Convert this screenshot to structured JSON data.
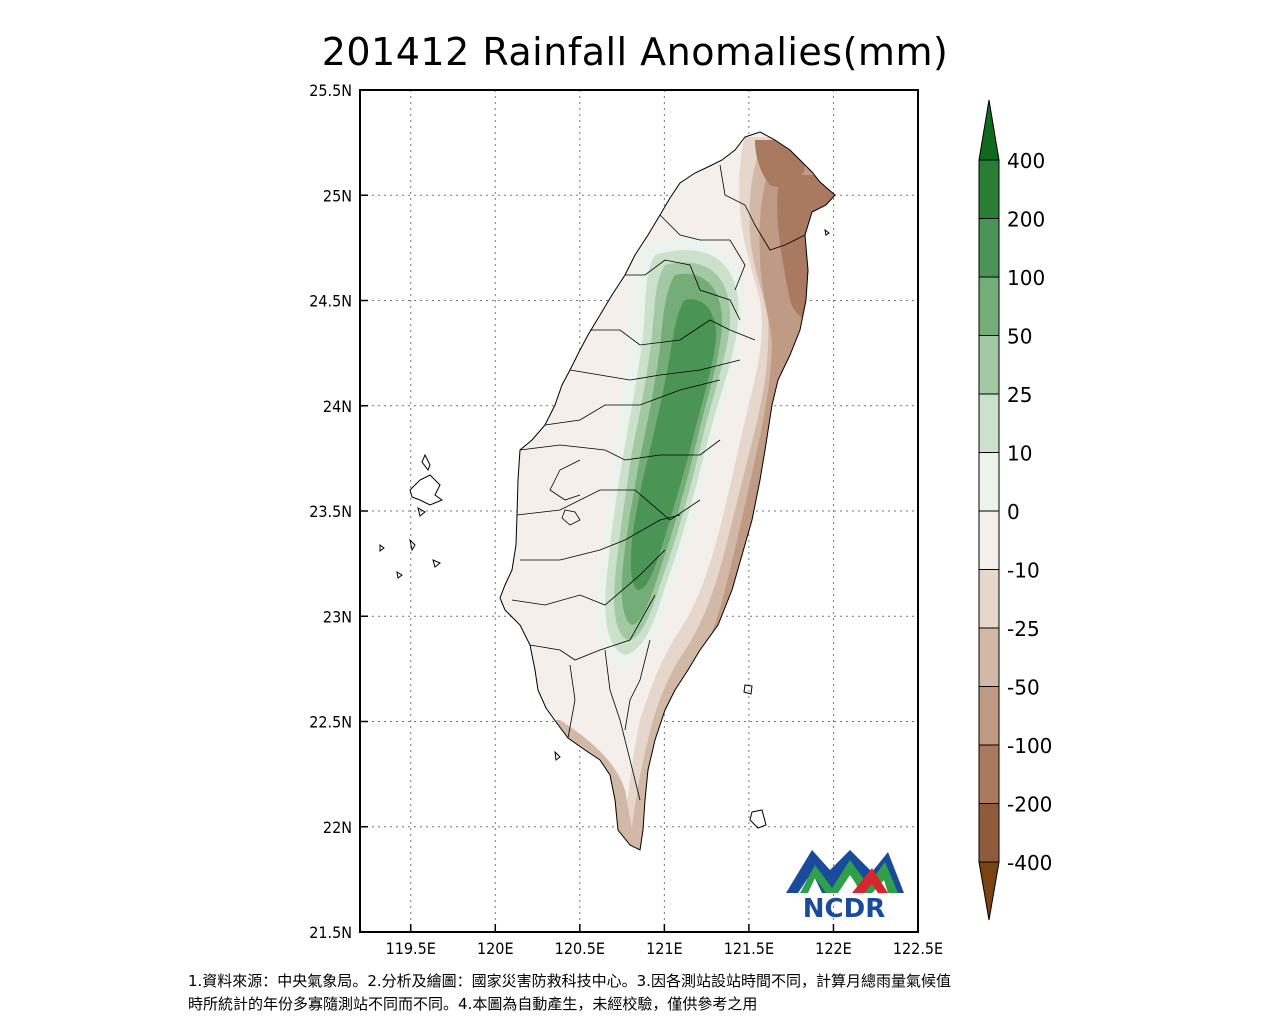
{
  "title": "201412 Rainfall Anomalies(mm)",
  "map": {
    "lat_ticks": [
      "25.5N",
      "25N",
      "24.5N",
      "24N",
      "23.5N",
      "23N",
      "22.5N",
      "22N",
      "21.5N"
    ],
    "lon_ticks": [
      "119.5E",
      "120E",
      "120.5E",
      "121E",
      "121.5E",
      "122E",
      "122.5E"
    ],
    "lat_range": [
      21.5,
      25.5
    ],
    "lon_range": [
      119.2,
      122.5
    ],
    "gridlines": true
  },
  "colorbar": {
    "labels": [
      "400",
      "200",
      "100",
      "50",
      "25",
      "10",
      "0",
      "-10",
      "-25",
      "-50",
      "-100",
      "-200",
      "-400"
    ],
    "colors": [
      "#0f6a1e",
      "#2a7e34",
      "#4a9455",
      "#74ad78",
      "#a2c9a3",
      "#cbe1cb",
      "#ecf3ec",
      "#f4efea",
      "#e6d6cc",
      "#d2b8a6",
      "#bf9a84",
      "#a97a5f",
      "#8e5b3c",
      "#7a4313"
    ],
    "extend_top_color": "#0f6a1e",
    "extend_bottom_color": "#7a4313"
  },
  "logo": {
    "text": "NCDR",
    "blue": "#1a4a9c",
    "green": "#2ea04a",
    "red": "#d8262e"
  },
  "notes": [
    "1.資料來源：中央氣象局。2.分析及繪圖：國家災害防救科技中心。3.因各測站設站時間不同，計算月總雨量氣候值",
    "時所統計的年份多寡隨測站不同而不同。4.本圖為自動產生，未經校驗，僅供參考之用"
  ]
}
